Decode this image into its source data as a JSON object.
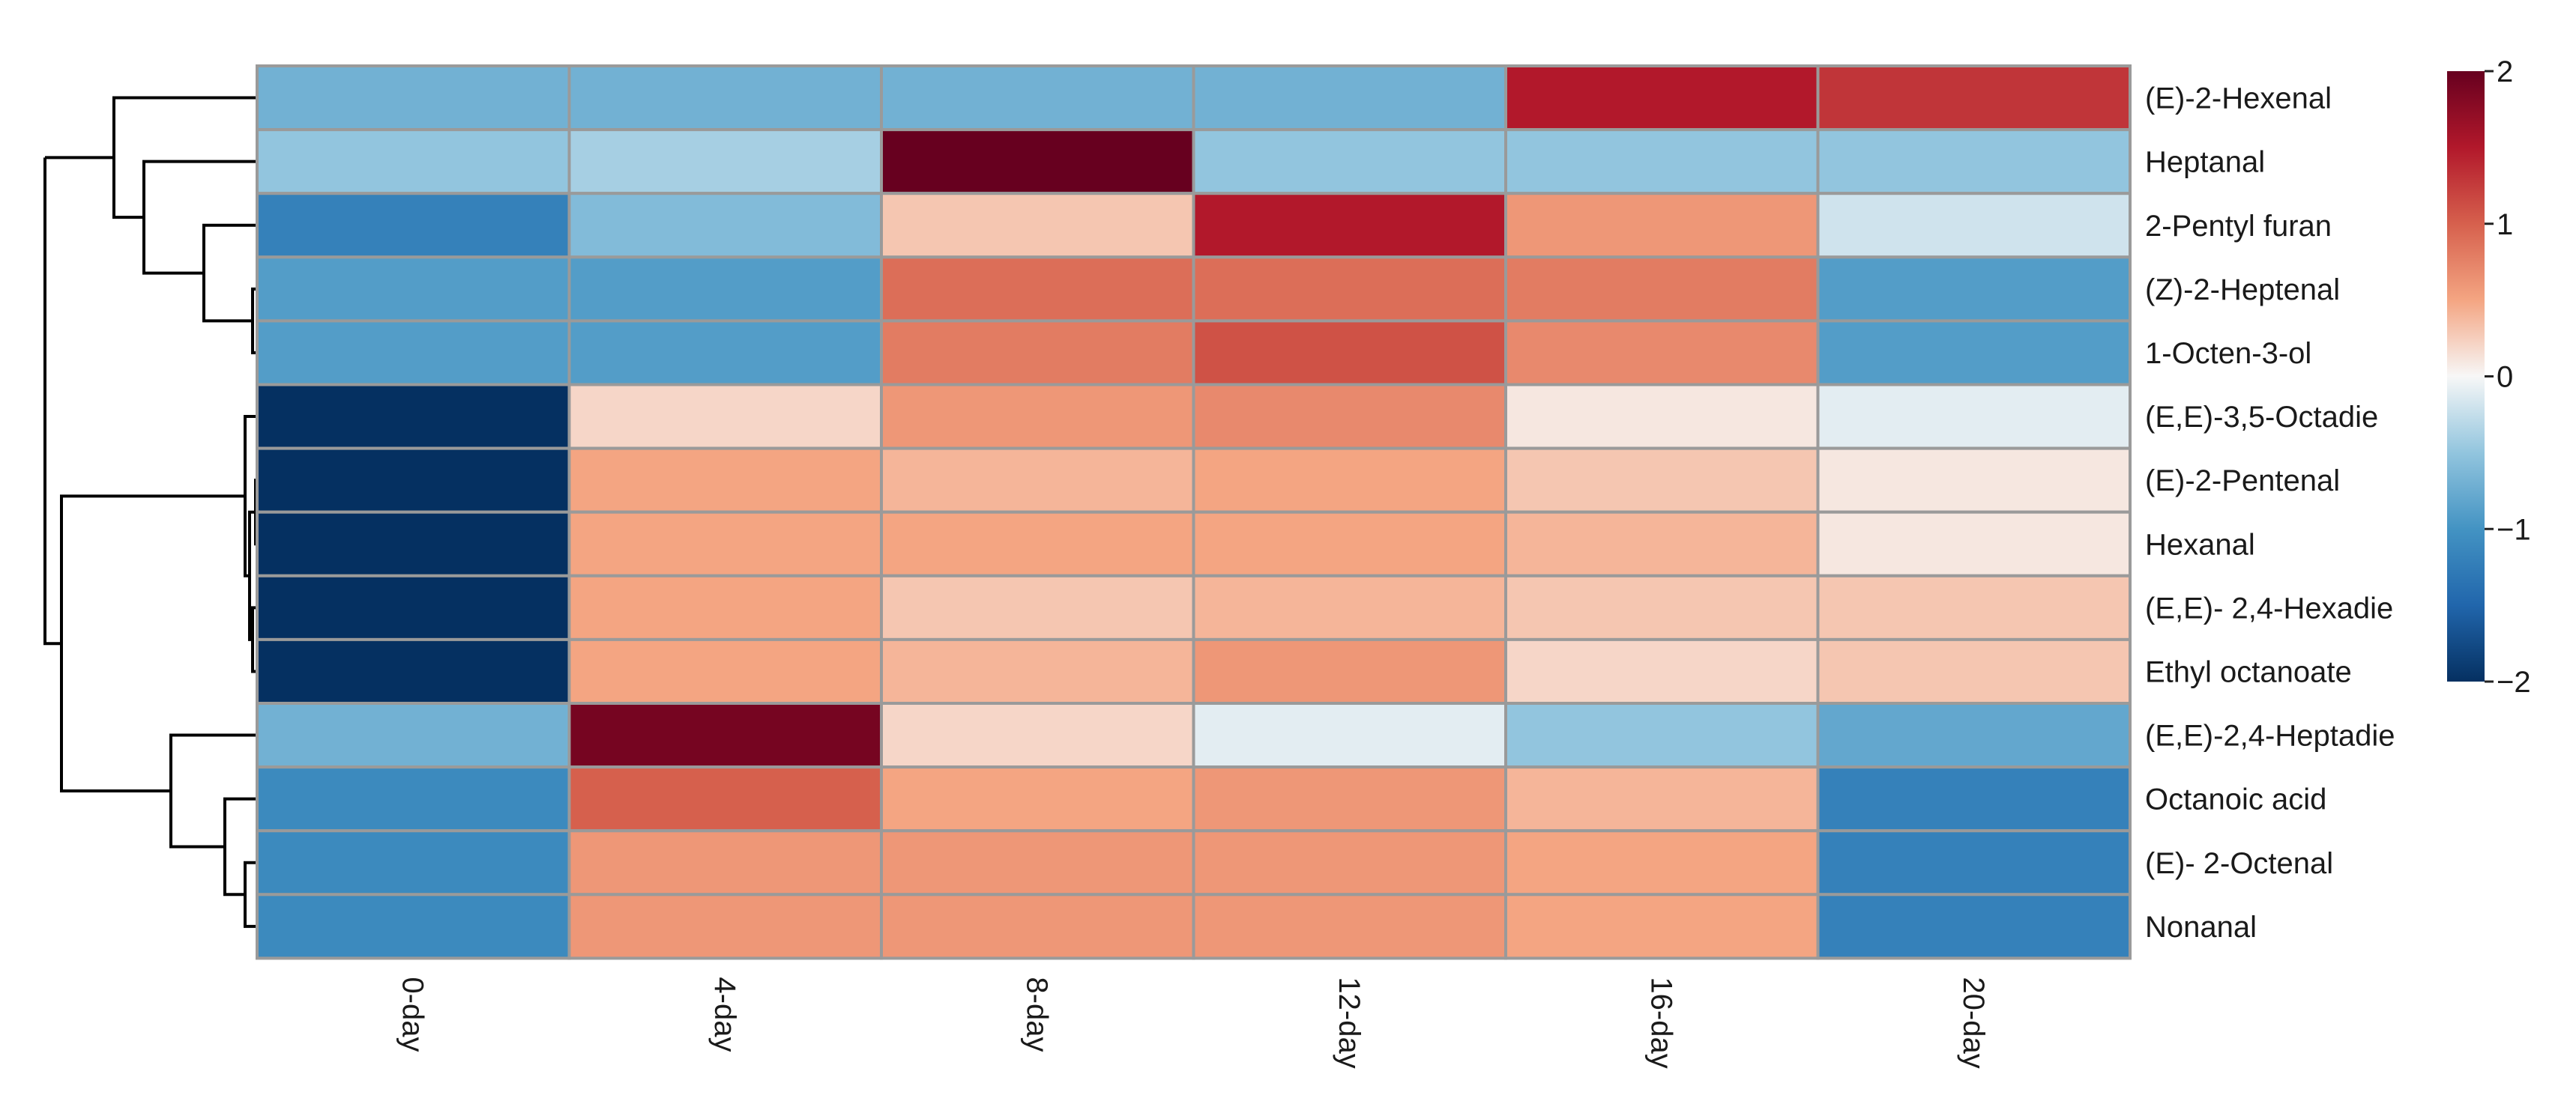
{
  "chart_data": {
    "type": "heatmap",
    "title": "",
    "columns": [
      "0-day",
      "4-day",
      "8-day",
      "12-day",
      "16-day",
      "20-day"
    ],
    "rows": [
      "(E)-2-Hexenal",
      "Heptanal",
      "2-Pentyl furan",
      "(Z)-2-Heptenal",
      "1-Octen-3-ol",
      " (E,E)-3,5-Octadie",
      "(E)-2-Pentenal",
      "Hexanal",
      "(E,E)- 2,4-Hexadie",
      "Ethyl octanoate",
      "(E,E)-2,4-Heptadie",
      "Octanoic acid",
      "(E)- 2-Octenal",
      "Nonanal"
    ],
    "values": [
      [
        -0.7,
        -0.7,
        -0.7,
        -0.7,
        1.5,
        1.3
      ],
      [
        -0.5,
        -0.4,
        2.0,
        -0.5,
        -0.5,
        -0.5
      ],
      [
        -1.2,
        -0.6,
        0.3,
        1.5,
        0.6,
        -0.2
      ],
      [
        -0.9,
        -0.9,
        0.9,
        0.9,
        0.8,
        -0.9
      ],
      [
        -0.9,
        -0.9,
        0.8,
        1.1,
        0.7,
        -0.9
      ],
      [
        -2.0,
        0.2,
        0.6,
        0.7,
        0.1,
        -0.1
      ],
      [
        -2.0,
        0.5,
        0.4,
        0.5,
        0.3,
        0.1
      ],
      [
        -2.0,
        0.5,
        0.5,
        0.5,
        0.4,
        0.1
      ],
      [
        -2.0,
        0.5,
        0.3,
        0.4,
        0.3,
        0.3
      ],
      [
        -2.0,
        0.5,
        0.4,
        0.6,
        0.2,
        0.3
      ],
      [
        -0.7,
        1.9,
        0.2,
        -0.1,
        -0.5,
        -0.8
      ],
      [
        -1.1,
        1.0,
        0.5,
        0.6,
        0.4,
        -1.2
      ],
      [
        -1.1,
        0.6,
        0.6,
        0.6,
        0.5,
        -1.2
      ],
      [
        -1.1,
        0.6,
        0.6,
        0.6,
        0.5,
        -1.2
      ]
    ],
    "colorbar": {
      "range": [
        -2,
        2
      ],
      "ticks": [
        2,
        1,
        0,
        -1,
        -2
      ],
      "colors": [
        "#67001f",
        "#d6604d",
        "#f7f7f7",
        "#4393c3",
        "#053061"
      ]
    },
    "dendrogram": "rows"
  },
  "colors": {
    "cell_border": "#9a9a9a",
    "tree": "#000000"
  }
}
